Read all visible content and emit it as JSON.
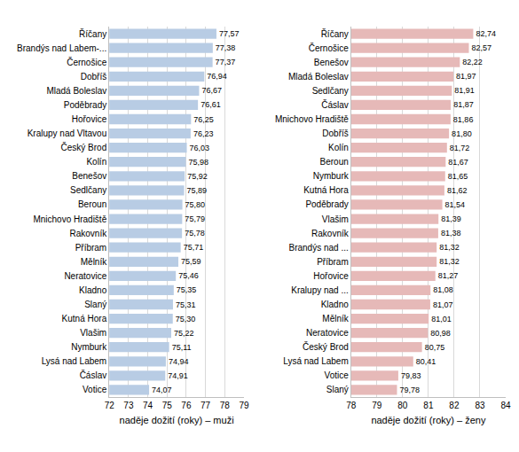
{
  "chart_data": [
    {
      "type": "bar",
      "orientation": "horizontal",
      "xlabel": "naděje dožití (roky) – muži",
      "categories": [
        "Říčany",
        "Brandýs nad Labem-...",
        "Černošice",
        "Dobříš",
        "Mladá Boleslav",
        "Poděbrady",
        "Hořovice",
        "Kralupy nad Vltavou",
        "Český Brod",
        "Kolín",
        "Benešov",
        "Sedlčany",
        "Beroun",
        "Mnichovo Hradiště",
        "Rakovník",
        "Příbram",
        "Mělník",
        "Neratovice",
        "Kladno",
        "Slaný",
        "Kutná Hora",
        "Vlašim",
        "Nymburk",
        "Lysá nad Labem",
        "Čáslav",
        "Votice"
      ],
      "values": [
        77.57,
        77.38,
        77.37,
        76.94,
        76.67,
        76.61,
        76.25,
        76.23,
        76.03,
        75.98,
        75.92,
        75.89,
        75.8,
        75.79,
        75.78,
        75.71,
        75.59,
        75.46,
        75.35,
        75.31,
        75.3,
        75.22,
        75.11,
        74.94,
        74.91,
        74.07
      ],
      "value_labels": [
        "77,57",
        "77,38",
        "77,37",
        "76,94",
        "76,67",
        "76,61",
        "76,25",
        "76,23",
        "76,03",
        "75,98",
        "75,92",
        "75,89",
        "75,80",
        "75,79",
        "75,78",
        "75,71",
        "75,59",
        "75,46",
        "75,35",
        "75,31",
        "75,30",
        "75,22",
        "75,11",
        "74,94",
        "74,91",
        "74,07"
      ],
      "color": "#b8cce4",
      "xlim": [
        72,
        79
      ],
      "xticks": [
        72,
        73,
        74,
        75,
        76,
        77,
        78,
        79
      ],
      "grid": true,
      "data_labels": true
    },
    {
      "type": "bar",
      "orientation": "horizontal",
      "xlabel": "naděje dožití (roky) – ženy",
      "categories": [
        "Říčany",
        "Černošice",
        "Benešov",
        "Mladá Boleslav",
        "Sedlčany",
        "Čáslav",
        "Mnichovo Hradiště",
        "Dobříš",
        "Kolín",
        "Beroun",
        "Nymburk",
        "Kutná Hora",
        "Poděbrady",
        "Vlašim",
        "Rakovník",
        "Brandýs nad ...",
        "Příbram",
        "Hořovice",
        "Kralupy nad ...",
        "Kladno",
        "Mělník",
        "Neratovice",
        "Český Brod",
        "Lysá nad Labem",
        "Votice",
        "Slaný"
      ],
      "values": [
        82.74,
        82.57,
        82.22,
        81.97,
        81.91,
        81.87,
        81.86,
        81.8,
        81.72,
        81.67,
        81.65,
        81.62,
        81.54,
        81.39,
        81.38,
        81.32,
        81.32,
        81.27,
        81.08,
        81.07,
        81.01,
        80.98,
        80.75,
        80.41,
        79.83,
        79.78
      ],
      "value_labels": [
        "82,74",
        "82,57",
        "82,22",
        "81,97",
        "81,91",
        "81,87",
        "81,86",
        "81,80",
        "81,72",
        "81,67",
        "81,65",
        "81,62",
        "81,54",
        "81,39",
        "81,38",
        "81,32",
        "81,32",
        "81,27",
        "81,08",
        "81,07",
        "81,01",
        "80,98",
        "80,75",
        "80,41",
        "79,83",
        "79,78"
      ],
      "color": "#e6b9b8",
      "xlim": [
        78,
        84
      ],
      "xticks": [
        78,
        79,
        80,
        81,
        82,
        83,
        84
      ],
      "grid": true,
      "data_labels": true
    }
  ]
}
